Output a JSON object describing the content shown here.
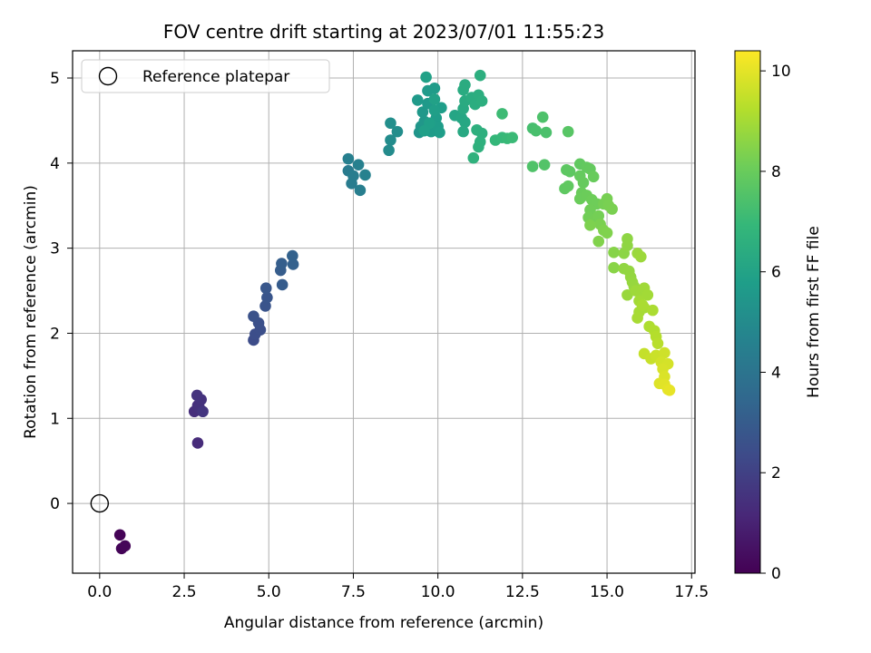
{
  "chart_data": {
    "type": "scatter",
    "title": "FOV centre drift starting at 2023/07/01 11:55:23",
    "xlabel": "Angular distance from reference (arcmin)",
    "ylabel": "Rotation from reference (arcmin)",
    "xlim": [
      -0.8,
      17.6
    ],
    "ylim": [
      -0.82,
      5.32
    ],
    "xticks": [
      0.0,
      2.5,
      5.0,
      7.5,
      10.0,
      12.5,
      15.0,
      17.5
    ],
    "yticks": [
      0,
      1,
      2,
      3,
      4,
      5
    ],
    "xtick_labels": [
      "0.0",
      "2.5",
      "5.0",
      "7.5",
      "10.0",
      "12.5",
      "15.0",
      "17.5"
    ],
    "ytick_labels": [
      "0",
      "1",
      "2",
      "3",
      "4",
      "5"
    ],
    "grid": true,
    "colormap": "viridis",
    "colorbar": {
      "label": "Hours from first FF file",
      "range": [
        0,
        10.4
      ],
      "ticks": [
        0,
        2,
        4,
        6,
        8,
        10
      ],
      "tick_labels": [
        "0",
        "2",
        "4",
        "6",
        "8",
        "10"
      ]
    },
    "legend": {
      "position": "top-left",
      "entries": [
        {
          "label": "Reference platepar",
          "marker": "open-circle"
        }
      ]
    },
    "reference_point": {
      "x": 0.0,
      "y": 0.0
    },
    "points": [
      {
        "x": 0.6,
        "y": -0.37,
        "t": 0.05
      },
      {
        "x": 0.65,
        "y": -0.53,
        "t": 0.1
      },
      {
        "x": 0.75,
        "y": -0.5,
        "t": 0.15
      },
      {
        "x": 2.9,
        "y": 0.71,
        "t": 1.3
      },
      {
        "x": 2.8,
        "y": 1.08,
        "t": 1.35
      },
      {
        "x": 2.9,
        "y": 1.15,
        "t": 1.4
      },
      {
        "x": 2.95,
        "y": 1.12,
        "t": 1.45
      },
      {
        "x": 3.0,
        "y": 1.22,
        "t": 1.5
      },
      {
        "x": 2.88,
        "y": 1.27,
        "t": 1.55
      },
      {
        "x": 3.05,
        "y": 1.08,
        "t": 1.6
      },
      {
        "x": 4.55,
        "y": 1.92,
        "t": 2.4
      },
      {
        "x": 4.6,
        "y": 1.99,
        "t": 2.45
      },
      {
        "x": 4.75,
        "y": 2.04,
        "t": 2.5
      },
      {
        "x": 4.7,
        "y": 2.12,
        "t": 2.55
      },
      {
        "x": 4.55,
        "y": 2.2,
        "t": 2.6
      },
      {
        "x": 4.9,
        "y": 2.32,
        "t": 2.7
      },
      {
        "x": 4.95,
        "y": 2.42,
        "t": 2.75
      },
      {
        "x": 4.92,
        "y": 2.53,
        "t": 2.8
      },
      {
        "x": 5.4,
        "y": 2.57,
        "t": 3.0
      },
      {
        "x": 5.35,
        "y": 2.74,
        "t": 3.05
      },
      {
        "x": 5.38,
        "y": 2.82,
        "t": 3.1
      },
      {
        "x": 5.72,
        "y": 2.81,
        "t": 3.2
      },
      {
        "x": 5.7,
        "y": 2.91,
        "t": 3.25
      },
      {
        "x": 7.35,
        "y": 3.91,
        "t": 4.3
      },
      {
        "x": 7.45,
        "y": 3.76,
        "t": 4.35
      },
      {
        "x": 7.5,
        "y": 3.85,
        "t": 4.4
      },
      {
        "x": 7.7,
        "y": 3.68,
        "t": 4.45
      },
      {
        "x": 7.35,
        "y": 4.05,
        "t": 4.5
      },
      {
        "x": 7.65,
        "y": 3.98,
        "t": 4.55
      },
      {
        "x": 7.85,
        "y": 3.86,
        "t": 4.6
      },
      {
        "x": 8.55,
        "y": 4.15,
        "t": 5.0
      },
      {
        "x": 8.6,
        "y": 4.27,
        "t": 5.05
      },
      {
        "x": 8.8,
        "y": 4.37,
        "t": 5.1
      },
      {
        "x": 8.6,
        "y": 4.47,
        "t": 5.15
      },
      {
        "x": 9.45,
        "y": 4.36,
        "t": 5.4
      },
      {
        "x": 9.5,
        "y": 4.43,
        "t": 5.45
      },
      {
        "x": 9.6,
        "y": 4.49,
        "t": 5.5
      },
      {
        "x": 9.55,
        "y": 4.6,
        "t": 5.55
      },
      {
        "x": 9.7,
        "y": 4.7,
        "t": 5.6
      },
      {
        "x": 9.4,
        "y": 4.74,
        "t": 5.62
      },
      {
        "x": 9.7,
        "y": 4.85,
        "t": 5.65
      },
      {
        "x": 9.9,
        "y": 4.88,
        "t": 5.68
      },
      {
        "x": 9.8,
        "y": 4.37,
        "t": 5.7
      },
      {
        "x": 9.95,
        "y": 4.53,
        "t": 5.72
      },
      {
        "x": 10.0,
        "y": 4.43,
        "t": 5.75
      },
      {
        "x": 10.05,
        "y": 4.36,
        "t": 5.78
      },
      {
        "x": 10.1,
        "y": 4.65,
        "t": 5.8
      },
      {
        "x": 9.9,
        "y": 4.62,
        "t": 5.82
      },
      {
        "x": 9.75,
        "y": 4.47,
        "t": 5.85
      },
      {
        "x": 9.6,
        "y": 4.38,
        "t": 5.88
      },
      {
        "x": 9.65,
        "y": 5.01,
        "t": 5.9
      },
      {
        "x": 9.9,
        "y": 4.75,
        "t": 5.92
      },
      {
        "x": 10.5,
        "y": 4.56,
        "t": 6.1
      },
      {
        "x": 10.7,
        "y": 4.53,
        "t": 6.15
      },
      {
        "x": 10.8,
        "y": 4.48,
        "t": 6.2
      },
      {
        "x": 10.75,
        "y": 4.37,
        "t": 6.25
      },
      {
        "x": 10.75,
        "y": 4.64,
        "t": 6.3
      },
      {
        "x": 10.8,
        "y": 4.73,
        "t": 6.35
      },
      {
        "x": 10.75,
        "y": 4.86,
        "t": 6.38
      },
      {
        "x": 10.8,
        "y": 4.92,
        "t": 6.4
      },
      {
        "x": 11.0,
        "y": 4.77,
        "t": 6.42
      },
      {
        "x": 11.1,
        "y": 4.69,
        "t": 6.45
      },
      {
        "x": 11.2,
        "y": 4.8,
        "t": 6.48
      },
      {
        "x": 11.3,
        "y": 4.73,
        "t": 6.5
      },
      {
        "x": 11.25,
        "y": 5.03,
        "t": 6.52
      },
      {
        "x": 11.15,
        "y": 4.39,
        "t": 6.55
      },
      {
        "x": 11.3,
        "y": 4.35,
        "t": 6.58
      },
      {
        "x": 11.25,
        "y": 4.25,
        "t": 6.6
      },
      {
        "x": 11.2,
        "y": 4.19,
        "t": 6.62
      },
      {
        "x": 11.05,
        "y": 4.06,
        "t": 6.65
      },
      {
        "x": 11.7,
        "y": 4.27,
        "t": 6.9
      },
      {
        "x": 11.9,
        "y": 4.3,
        "t": 6.95
      },
      {
        "x": 12.05,
        "y": 4.29,
        "t": 7.0
      },
      {
        "x": 12.2,
        "y": 4.3,
        "t": 7.05
      },
      {
        "x": 11.9,
        "y": 4.58,
        "t": 7.1
      },
      {
        "x": 12.8,
        "y": 4.41,
        "t": 7.3
      },
      {
        "x": 12.9,
        "y": 4.38,
        "t": 7.35
      },
      {
        "x": 13.2,
        "y": 4.36,
        "t": 7.4
      },
      {
        "x": 13.1,
        "y": 4.54,
        "t": 7.45
      },
      {
        "x": 12.8,
        "y": 3.96,
        "t": 7.5
      },
      {
        "x": 13.15,
        "y": 3.98,
        "t": 7.55
      },
      {
        "x": 13.85,
        "y": 4.37,
        "t": 7.65
      },
      {
        "x": 13.8,
        "y": 3.92,
        "t": 7.75
      },
      {
        "x": 13.9,
        "y": 3.9,
        "t": 7.78
      },
      {
        "x": 13.75,
        "y": 3.7,
        "t": 7.8
      },
      {
        "x": 13.85,
        "y": 3.73,
        "t": 7.82
      },
      {
        "x": 14.2,
        "y": 3.99,
        "t": 7.85
      },
      {
        "x": 14.4,
        "y": 3.95,
        "t": 7.88
      },
      {
        "x": 14.5,
        "y": 3.93,
        "t": 7.9
      },
      {
        "x": 14.2,
        "y": 3.85,
        "t": 7.92
      },
      {
        "x": 14.3,
        "y": 3.77,
        "t": 7.95
      },
      {
        "x": 14.6,
        "y": 3.84,
        "t": 7.98
      },
      {
        "x": 14.25,
        "y": 3.65,
        "t": 8.0
      },
      {
        "x": 14.2,
        "y": 3.58,
        "t": 8.02
      },
      {
        "x": 14.4,
        "y": 3.62,
        "t": 8.05
      },
      {
        "x": 14.55,
        "y": 3.57,
        "t": 8.08
      },
      {
        "x": 14.7,
        "y": 3.52,
        "t": 8.1
      },
      {
        "x": 14.5,
        "y": 3.45,
        "t": 8.12
      },
      {
        "x": 14.45,
        "y": 3.36,
        "t": 8.15
      },
      {
        "x": 14.6,
        "y": 3.32,
        "t": 8.18
      },
      {
        "x": 14.75,
        "y": 3.38,
        "t": 8.2
      },
      {
        "x": 14.9,
        "y": 3.52,
        "t": 8.22
      },
      {
        "x": 15.0,
        "y": 3.58,
        "t": 8.25
      },
      {
        "x": 15.05,
        "y": 3.5,
        "t": 8.28
      },
      {
        "x": 15.15,
        "y": 3.46,
        "t": 8.3
      },
      {
        "x": 14.8,
        "y": 3.28,
        "t": 8.32
      },
      {
        "x": 14.5,
        "y": 3.27,
        "t": 8.35
      },
      {
        "x": 14.9,
        "y": 3.21,
        "t": 8.38
      },
      {
        "x": 15.0,
        "y": 3.18,
        "t": 8.4
      },
      {
        "x": 14.75,
        "y": 3.08,
        "t": 8.42
      },
      {
        "x": 15.2,
        "y": 2.95,
        "t": 8.5
      },
      {
        "x": 15.2,
        "y": 2.77,
        "t": 8.55
      },
      {
        "x": 15.5,
        "y": 2.94,
        "t": 8.6
      },
      {
        "x": 15.6,
        "y": 3.11,
        "t": 8.62
      },
      {
        "x": 15.6,
        "y": 3.03,
        "t": 8.65
      },
      {
        "x": 15.5,
        "y": 2.76,
        "t": 8.68
      },
      {
        "x": 15.65,
        "y": 2.73,
        "t": 8.7
      },
      {
        "x": 15.7,
        "y": 2.66,
        "t": 8.72
      },
      {
        "x": 15.75,
        "y": 2.6,
        "t": 8.75
      },
      {
        "x": 15.8,
        "y": 2.55,
        "t": 8.78
      },
      {
        "x": 15.6,
        "y": 2.45,
        "t": 8.8
      },
      {
        "x": 15.9,
        "y": 2.94,
        "t": 8.82
      },
      {
        "x": 16.0,
        "y": 2.9,
        "t": 8.85
      },
      {
        "x": 15.85,
        "y": 2.5,
        "t": 8.88
      },
      {
        "x": 16.0,
        "y": 2.46,
        "t": 8.9
      },
      {
        "x": 16.1,
        "y": 2.53,
        "t": 8.92
      },
      {
        "x": 16.2,
        "y": 2.45,
        "t": 8.95
      },
      {
        "x": 15.95,
        "y": 2.38,
        "t": 8.98
      },
      {
        "x": 16.1,
        "y": 2.3,
        "t": 9.0
      },
      {
        "x": 15.95,
        "y": 2.25,
        "t": 9.02
      },
      {
        "x": 15.9,
        "y": 2.18,
        "t": 9.05
      },
      {
        "x": 16.05,
        "y": 2.33,
        "t": 9.08
      },
      {
        "x": 16.35,
        "y": 2.27,
        "t": 9.1
      },
      {
        "x": 16.25,
        "y": 2.08,
        "t": 9.15
      },
      {
        "x": 16.4,
        "y": 2.03,
        "t": 9.2
      },
      {
        "x": 16.45,
        "y": 1.96,
        "t": 9.25
      },
      {
        "x": 16.5,
        "y": 1.88,
        "t": 9.3
      },
      {
        "x": 16.1,
        "y": 1.76,
        "t": 9.5
      },
      {
        "x": 16.3,
        "y": 1.7,
        "t": 9.55
      },
      {
        "x": 16.45,
        "y": 1.74,
        "t": 9.6
      },
      {
        "x": 16.7,
        "y": 1.77,
        "t": 9.65
      },
      {
        "x": 16.6,
        "y": 1.66,
        "t": 9.7
      },
      {
        "x": 16.8,
        "y": 1.64,
        "t": 9.75
      },
      {
        "x": 16.65,
        "y": 1.58,
        "t": 9.8
      },
      {
        "x": 16.7,
        "y": 1.49,
        "t": 9.85
      },
      {
        "x": 16.55,
        "y": 1.41,
        "t": 9.9
      },
      {
        "x": 16.7,
        "y": 1.4,
        "t": 9.95
      },
      {
        "x": 16.8,
        "y": 1.34,
        "t": 10.0
      },
      {
        "x": 16.85,
        "y": 1.33,
        "t": 10.05
      }
    ]
  }
}
